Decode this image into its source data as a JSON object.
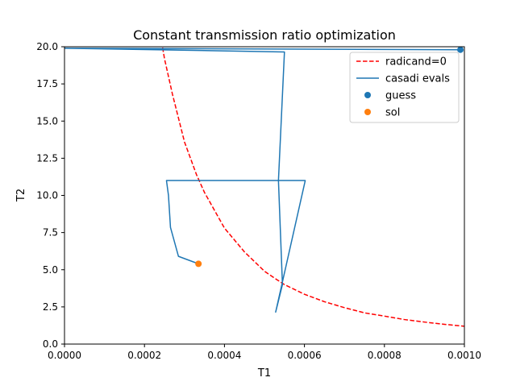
{
  "chart_data": {
    "type": "line",
    "title": "Constant transmission ratio optimization",
    "xlabel": "T1",
    "ylabel": "T2",
    "xlim": [
      0.0,
      0.001
    ],
    "ylim": [
      0.0,
      20.0
    ],
    "grid": false,
    "legend_position": "top-right",
    "x_ticks": [
      {
        "value": 0.0,
        "label": "0.0000"
      },
      {
        "value": 0.0002,
        "label": "0.0002"
      },
      {
        "value": 0.0004,
        "label": "0.0004"
      },
      {
        "value": 0.0006,
        "label": "0.0006"
      },
      {
        "value": 0.0008,
        "label": "0.0008"
      },
      {
        "value": 0.001,
        "label": "0.0010"
      }
    ],
    "y_ticks": [
      {
        "value": 0.0,
        "label": "0.0"
      },
      {
        "value": 2.5,
        "label": "2.5"
      },
      {
        "value": 5.0,
        "label": "5.0"
      },
      {
        "value": 7.5,
        "label": "7.5"
      },
      {
        "value": 10.0,
        "label": "10.0"
      },
      {
        "value": 12.5,
        "label": "12.5"
      },
      {
        "value": 15.0,
        "label": "15.0"
      },
      {
        "value": 17.5,
        "label": "17.5"
      },
      {
        "value": 20.0,
        "label": "20.0"
      }
    ],
    "series": [
      {
        "name": "radicand=0",
        "kind": "line",
        "style": "dashed",
        "color": "#ff0000",
        "x": [
          0.00024,
          0.00025,
          0.00027,
          0.0003,
          0.00033,
          0.00035,
          0.0004,
          0.00045,
          0.0005,
          0.00053,
          0.00055,
          0.0006,
          0.00065,
          0.0007,
          0.00075,
          0.0008,
          0.00085,
          0.0009,
          0.00095,
          0.001
        ],
        "y": [
          20.8,
          19.2,
          16.8,
          13.6,
          11.4,
          10.2,
          7.8,
          6.2,
          4.9,
          4.35,
          4.0,
          3.35,
          2.85,
          2.45,
          2.1,
          1.88,
          1.65,
          1.48,
          1.33,
          1.2
        ]
      },
      {
        "name": "casadi evals",
        "kind": "line",
        "style": "solid",
        "color": "#1f77b4",
        "x": [
          0.00099,
          0.0,
          0.00055,
          0.000535,
          0.000545,
          0.000528,
          0.000602,
          0.000255,
          0.00026,
          0.000265,
          0.000285,
          0.000335
        ],
        "y": [
          19.8,
          19.9,
          19.65,
          11.0,
          4.0,
          2.15,
          11.0,
          11.0,
          10.0,
          7.85,
          5.9,
          5.4
        ]
      },
      {
        "name": "guess",
        "kind": "scatter",
        "color": "#1f77b4",
        "x": [
          0.00099
        ],
        "y": [
          19.8
        ]
      },
      {
        "name": "sol",
        "kind": "scatter",
        "color": "#ff7f0e",
        "x": [
          0.000335
        ],
        "y": [
          5.4
        ]
      }
    ]
  }
}
